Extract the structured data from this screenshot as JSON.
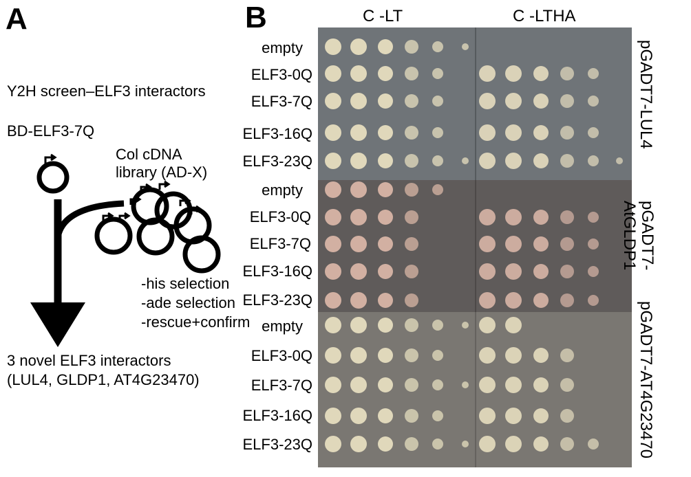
{
  "panel_a": {
    "letter": "A",
    "screen_title": "Y2H screen–ELF3 interactors",
    "bait_label": "BD-ELF3-7Q",
    "library_label_line1": "Col cDNA",
    "library_label_line2": "library (AD-X)",
    "steps": [
      "-his selection",
      "-ade selection",
      "-rescue+confirm"
    ],
    "result_line1": "3 novel ELF3 interactors",
    "result_line2": "(LUL4, GLDP1, AT4G23470)"
  },
  "panel_b": {
    "letter": "B",
    "media": [
      "C -LT",
      "C -LTHA"
    ],
    "row_labels": [
      "empty",
      "ELF3-0Q",
      "ELF3-7Q",
      "ELF3-16Q",
      "ELF3-23Q"
    ],
    "blocks": [
      {
        "prey_line1": "pGADT7-LUL4",
        "prey_line2": ""
      },
      {
        "prey_line1": "pGADT7-",
        "prey_line2": "AtGLDP1"
      },
      {
        "prey_line1": "pGADT7-AT4G23470",
        "prey_line2": ""
      }
    ]
  },
  "colors": {
    "plate_block1": "#6f7478",
    "plate_block2": "#5f5b5a",
    "plate_block3": "#7a7772",
    "colony_cream": "#e6ddbf",
    "colony_pink": "#d8b5a6"
  }
}
